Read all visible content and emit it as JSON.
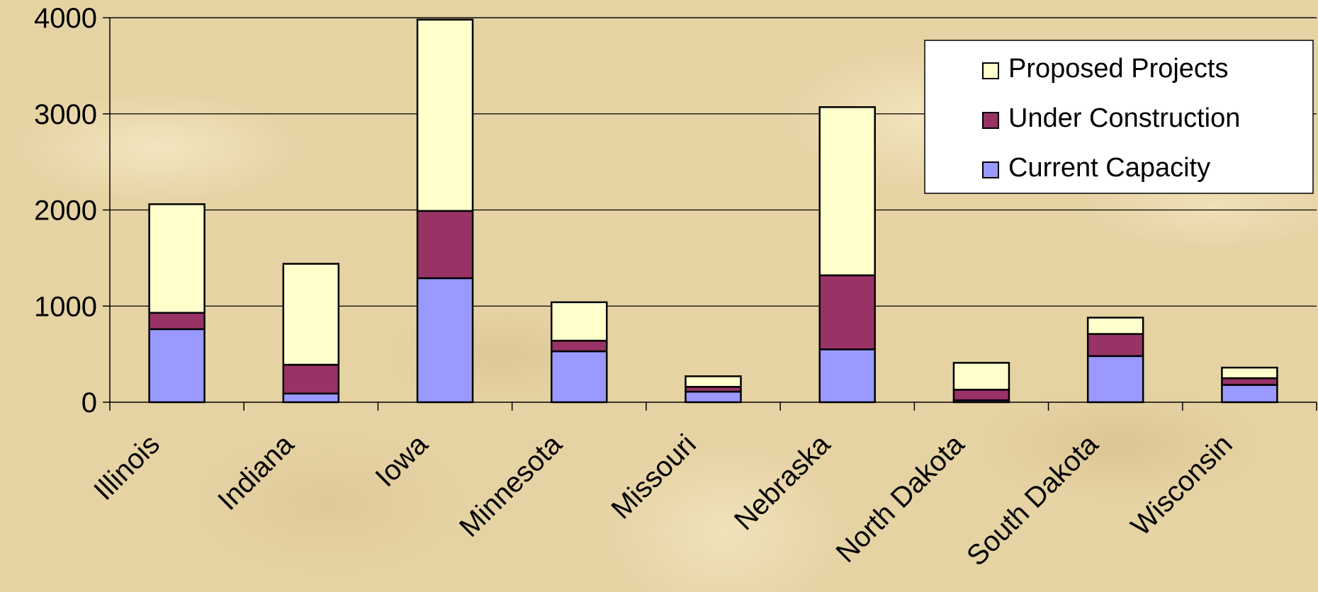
{
  "chart_data": {
    "type": "bar",
    "stacked": true,
    "categories": [
      "Illinois",
      "Indiana",
      "Iowa",
      "Minnesota",
      "Missouri",
      "Nebraska",
      "North Dakota",
      "South Dakota",
      "Wisconsin"
    ],
    "series": [
      {
        "name": "Current Capacity",
        "color": "#9999ff",
        "values": [
          760,
          90,
          1290,
          530,
          110,
          550,
          20,
          480,
          180
        ]
      },
      {
        "name": "Under Construction",
        "color": "#993366",
        "values": [
          170,
          300,
          700,
          110,
          50,
          770,
          110,
          230,
          70
        ]
      },
      {
        "name": "Proposed Projects",
        "color": "#ffffcc",
        "values": [
          1130,
          1050,
          1990,
          400,
          110,
          1750,
          280,
          170,
          110
        ]
      }
    ],
    "title": "",
    "xlabel": "",
    "ylabel": "",
    "ylim": [
      0,
      4000
    ],
    "yticks": [
      0,
      1000,
      2000,
      3000,
      4000
    ],
    "grid": true,
    "legend": {
      "position": "top-right",
      "entries": [
        "Proposed Projects",
        "Under Construction",
        "Current Capacity"
      ]
    }
  }
}
